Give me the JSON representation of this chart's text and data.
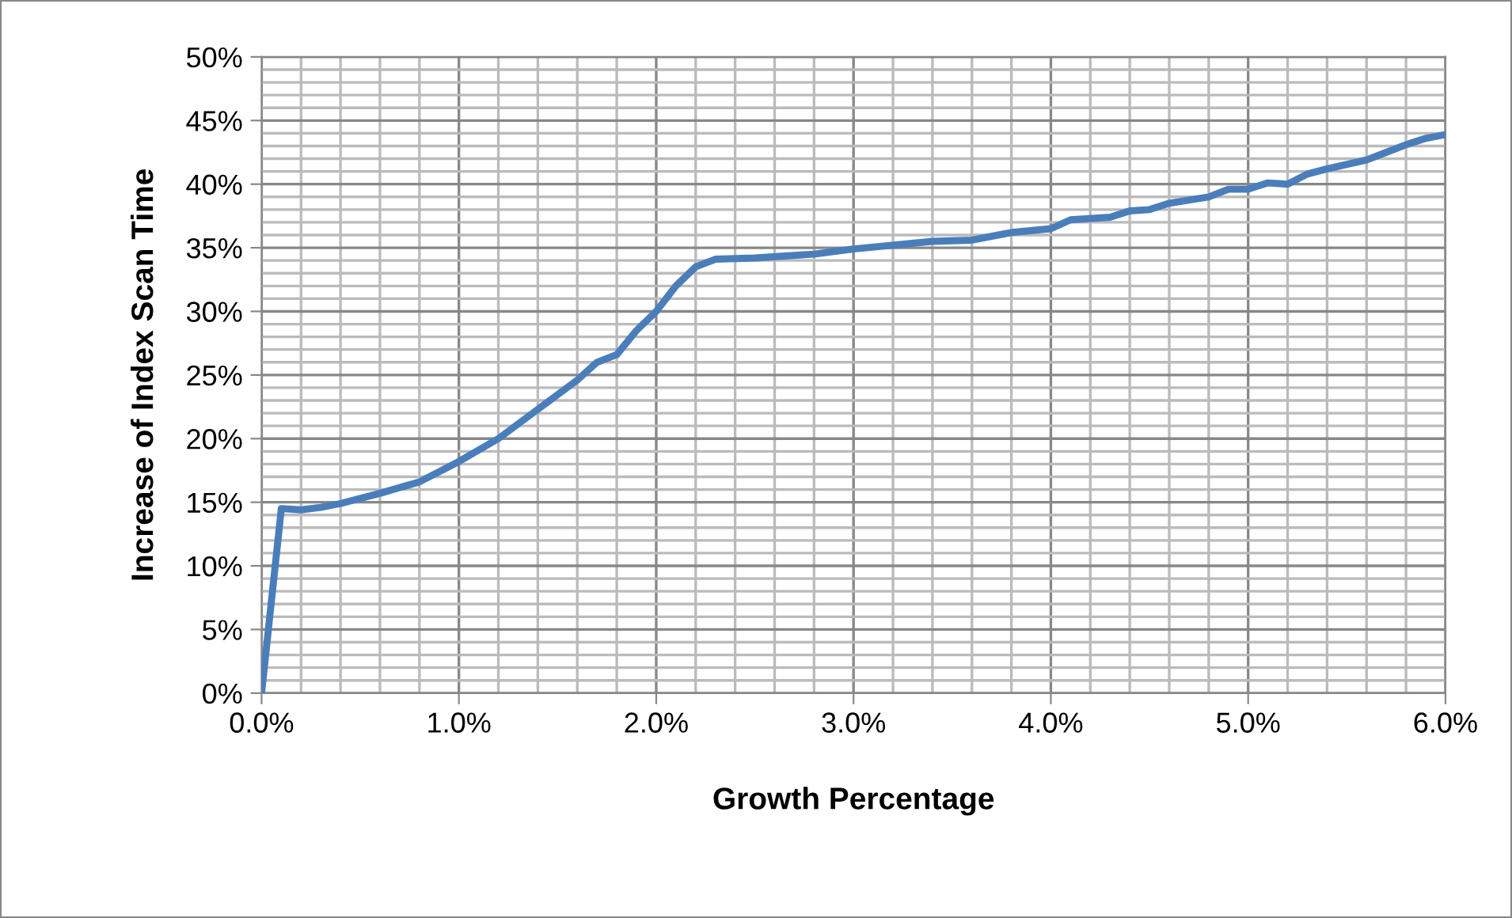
{
  "chart_data": {
    "type": "line",
    "xlabel": "Growth Percentage",
    "ylabel": "Increase of Index Scan Time",
    "series": [
      {
        "color": "#4a7ebb",
        "x": [
          0,
          0.1,
          0.2,
          0.3,
          0.4,
          0.6,
          0.8,
          1.0,
          1.2,
          1.4,
          1.6,
          1.7,
          1.8,
          1.9,
          2.0,
          2.1,
          2.2,
          2.3,
          2.5,
          2.8,
          3.0,
          3.4,
          3.6,
          3.8,
          4.0,
          4.1,
          4.3,
          4.4,
          4.5,
          4.6,
          4.8,
          4.9,
          5.0,
          5.1,
          5.2,
          5.3,
          5.4,
          5.6,
          5.7,
          5.8,
          5.9,
          6.0
        ],
        "values": [
          0,
          14.5,
          14.4,
          14.6,
          14.9,
          15.7,
          16.6,
          18.2,
          20.0,
          22.3,
          24.6,
          26.0,
          26.6,
          28.5,
          30.0,
          32.0,
          33.5,
          34.1,
          34.2,
          34.5,
          34.9,
          35.5,
          35.6,
          36.2,
          36.5,
          37.2,
          37.4,
          37.9,
          38.0,
          38.5,
          39.0,
          39.6,
          39.6,
          40.1,
          40.0,
          40.8,
          41.2,
          41.9,
          42.5,
          43.1,
          43.6,
          43.9
        ]
      }
    ],
    "xlim": [
      0,
      6
    ],
    "ylim": [
      0,
      50
    ],
    "xticks": [
      {
        "value": 0,
        "label": "0.0%"
      },
      {
        "value": 1,
        "label": "1.0%"
      },
      {
        "value": 2,
        "label": "2.0%"
      },
      {
        "value": 3,
        "label": "3.0%"
      },
      {
        "value": 4,
        "label": "4.0%"
      },
      {
        "value": 5,
        "label": "5.0%"
      },
      {
        "value": 6,
        "label": "6.0%"
      }
    ],
    "yticks": [
      {
        "value": 0,
        "label": "0%"
      },
      {
        "value": 5,
        "label": "5%"
      },
      {
        "value": 10,
        "label": "10%"
      },
      {
        "value": 15,
        "label": "15%"
      },
      {
        "value": 20,
        "label": "20%"
      },
      {
        "value": 25,
        "label": "25%"
      },
      {
        "value": 30,
        "label": "30%"
      },
      {
        "value": 35,
        "label": "35%"
      },
      {
        "value": 40,
        "label": "40%"
      },
      {
        "value": 45,
        "label": "45%"
      },
      {
        "value": 50,
        "label": "50%"
      }
    ],
    "grid": true,
    "marker": "none",
    "line_style": "solid"
  }
}
